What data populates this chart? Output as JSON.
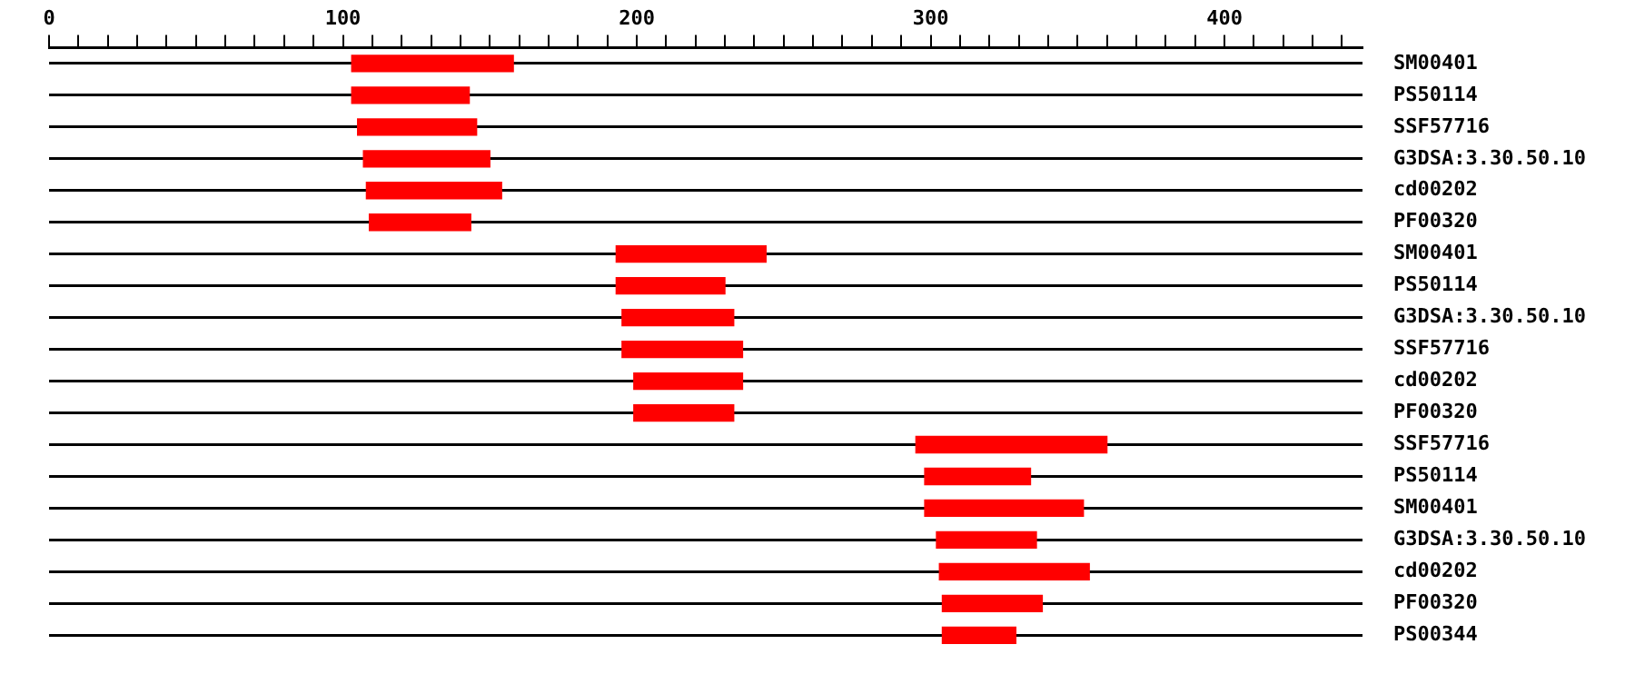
{
  "chart_data": {
    "type": "bar",
    "orientation": "horizontal",
    "color": "#ff0000",
    "categories": [
      "SM00401",
      "PS50114",
      "SSF57716",
      "G3DSA:3.30.50.10",
      "cd00202",
      "PF00320",
      "SM00401",
      "PS50114",
      "G3DSA:3.30.50.10",
      "SSF57716",
      "cd00202",
      "PF00320",
      "SSF57716",
      "PS50114",
      "SM00401",
      "G3DSA:3.30.50.10",
      "cd00202",
      "PF00320",
      "PS00344"
    ],
    "base": [
      103,
      103,
      105,
      107,
      108,
      109,
      193,
      193,
      195,
      195,
      199,
      199,
      295,
      298,
      298,
      302,
      303,
      304,
      304
    ],
    "values": [
      55,
      40,
      40.5,
      43,
      46,
      34.5,
      51,
      37,
      38,
      41,
      37,
      34,
      65,
      36,
      54,
      34,
      51,
      34,
      25
    ],
    "xlim": [
      0,
      447
    ],
    "xticks": [
      0,
      {
        "value": 10,
        "label": null
      },
      {
        "value": 20,
        "label": null
      },
      {
        "value": 30,
        "label": null
      },
      {
        "value": 40,
        "label": null
      },
      {
        "value": 50,
        "label": null
      },
      {
        "value": 60,
        "label": null
      },
      {
        "value": 70,
        "label": null
      },
      {
        "value": 80,
        "label": null
      },
      {
        "value": 90,
        "label": null
      },
      100,
      {
        "value": 110,
        "label": null
      },
      {
        "value": 120,
        "label": null
      },
      {
        "value": 130,
        "label": null
      },
      {
        "value": 140,
        "label": null
      },
      {
        "value": 150,
        "label": null
      },
      {
        "value": 160,
        "label": null
      },
      {
        "value": 170,
        "label": null
      },
      {
        "value": 180,
        "label": null
      },
      {
        "value": 190,
        "label": null
      },
      200,
      {
        "value": 210,
        "label": null
      },
      {
        "value": 220,
        "label": null
      },
      {
        "value": 230,
        "label": null
      },
      {
        "value": 240,
        "label": null
      },
      {
        "value": 250,
        "label": null
      },
      {
        "value": 260,
        "label": null
      },
      {
        "value": 270,
        "label": null
      },
      {
        "value": 280,
        "label": null
      },
      {
        "value": 290,
        "label": null
      },
      300,
      {
        "value": 310,
        "label": null
      },
      {
        "value": 320,
        "label": null
      },
      {
        "value": 330,
        "label": null
      },
      {
        "value": 340,
        "label": null
      },
      {
        "value": 350,
        "label": null
      },
      {
        "value": 360,
        "label": null
      },
      {
        "value": 370,
        "label": null
      },
      {
        "value": 380,
        "label": null
      },
      {
        "value": 390,
        "label": null
      },
      400,
      {
        "value": 410,
        "label": null
      },
      {
        "value": 420,
        "label": null
      },
      {
        "value": 430,
        "label": null
      },
      {
        "value": 440,
        "label": null
      }
    ],
    "grid": "y",
    "legend": false
  }
}
